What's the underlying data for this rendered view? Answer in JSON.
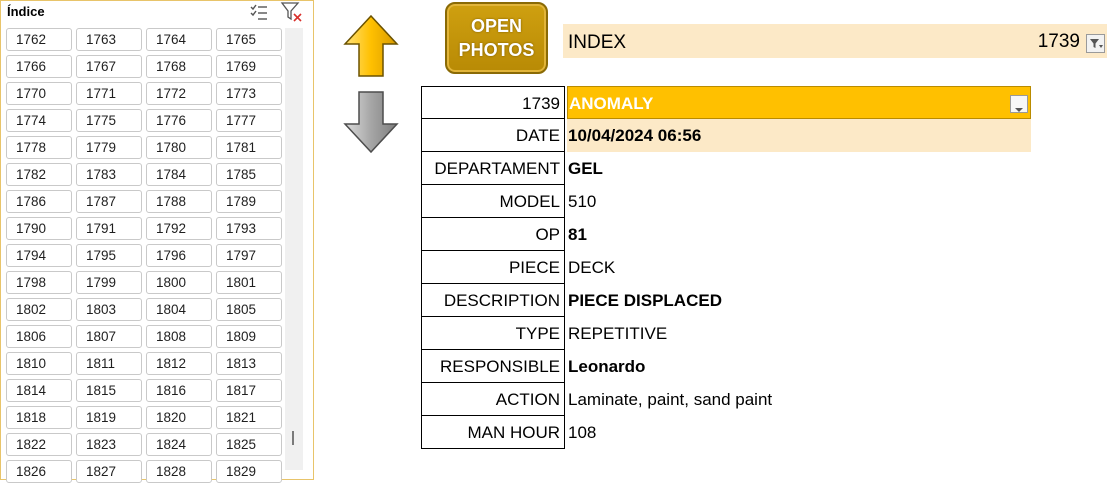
{
  "slicer": {
    "title": "Índice",
    "items": [
      "1762",
      "1763",
      "1764",
      "1765",
      "1766",
      "1767",
      "1768",
      "1769",
      "1770",
      "1771",
      "1772",
      "1773",
      "1774",
      "1775",
      "1776",
      "1777",
      "1778",
      "1779",
      "1780",
      "1781",
      "1782",
      "1783",
      "1784",
      "1785",
      "1786",
      "1787",
      "1788",
      "1789",
      "1790",
      "1791",
      "1792",
      "1793",
      "1794",
      "1795",
      "1796",
      "1797",
      "1798",
      "1799",
      "1800",
      "1801",
      "1802",
      "1803",
      "1804",
      "1805",
      "1806",
      "1807",
      "1808",
      "1809",
      "1810",
      "1811",
      "1812",
      "1813",
      "1814",
      "1815",
      "1816",
      "1817",
      "1818",
      "1819",
      "1820",
      "1821",
      "1822",
      "1823",
      "1824",
      "1825",
      "1826",
      "1827",
      "1828",
      "1829"
    ]
  },
  "buttons": {
    "open_photos_line1": "OPEN",
    "open_photos_line2": "PHOTOS"
  },
  "index_bar": {
    "label": "INDEX",
    "value": "1739"
  },
  "record": {
    "id_label": "1739",
    "status": "ANOMALY",
    "date_label": "DATE",
    "date_value": "10/04/2024 06:56",
    "departament_label": "DEPARTAMENT",
    "departament_value": "GEL",
    "model_label": "MODEL",
    "model_value": "510",
    "op_label": "OP",
    "op_value": "81",
    "piece_label": "PIECE",
    "piece_value": "DECK",
    "description_label": "DESCRIPTION",
    "description_value": "PIECE DISPLACED",
    "type_label": "TYPE",
    "type_value": "REPETITIVE",
    "responsible_label": "RESPONSIBLE",
    "responsible_value": "Leonardo",
    "action_label": "ACTION",
    "action_value": "Laminate, paint, sand paint",
    "man_hour_label": "MAN HOUR",
    "man_hour_value": "108"
  },
  "colors": {
    "anomaly_fill": "#ffc000",
    "highlight_fill": "#fce9c7",
    "button_gold": "#c39407",
    "arrow_up": "#ffc000",
    "arrow_down": "#a6a6a6"
  },
  "icons": {
    "multiselect": "multiselect-icon",
    "clear_filter": "clear-filter-icon",
    "arrow_up": "arrow-up-icon",
    "arrow_down": "arrow-down-icon",
    "dropdown": "dropdown-icon"
  }
}
